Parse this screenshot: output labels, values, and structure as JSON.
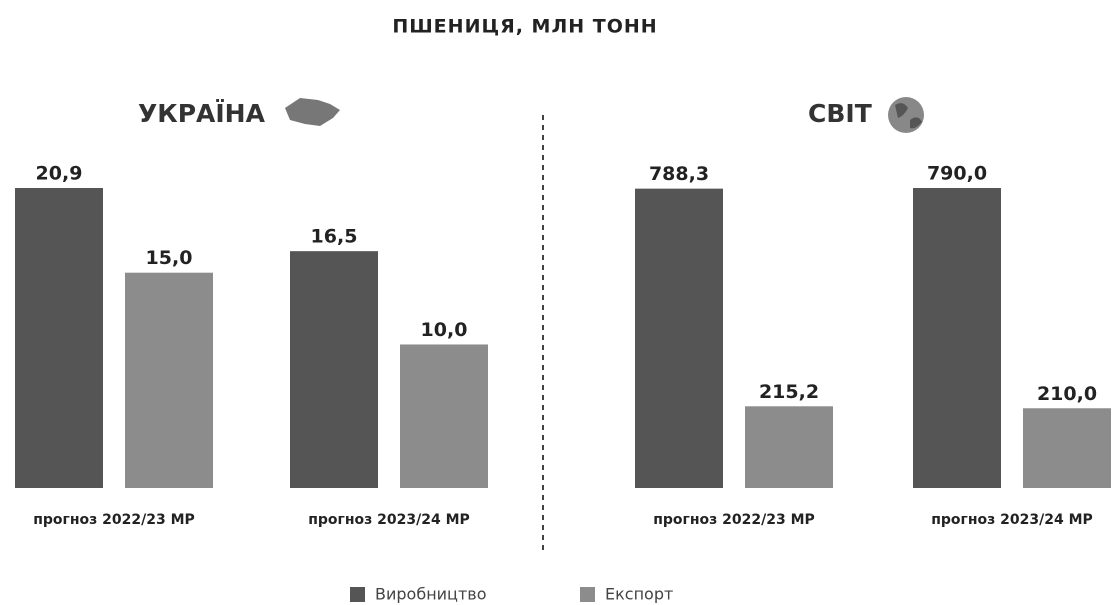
{
  "title": "ПШЕНИЦЯ, МЛН ТОНН",
  "chart_data": [
    {
      "type": "bar",
      "title": "УКРАЇНА",
      "categories": [
        "прогноз 2022/23 МР",
        "прогноз 2023/24 МР"
      ],
      "series": [
        {
          "name": "Виробництво",
          "color": "#555555",
          "values": [
            20.9,
            16.5
          ],
          "value_labels": [
            "20,9",
            "16,5"
          ]
        },
        {
          "name": "Експорт",
          "color": "#8c8c8c",
          "values": [
            15.0,
            10.0
          ],
          "value_labels": [
            "15,0",
            "10,0"
          ]
        }
      ]
    },
    {
      "type": "bar",
      "title": "СВІТ",
      "categories": [
        "прогноз 2022/23 МР",
        "прогноз 2023/24 МР"
      ],
      "series": [
        {
          "name": "Виробництво",
          "color": "#555555",
          "values": [
            788.3,
            790.0
          ],
          "value_labels": [
            "788,3",
            "790,0"
          ]
        },
        {
          "name": "Експорт",
          "color": "#8c8c8c",
          "values": [
            215.2,
            210.0
          ],
          "value_labels": [
            "215,2",
            "210,0"
          ]
        }
      ]
    }
  ]
}
